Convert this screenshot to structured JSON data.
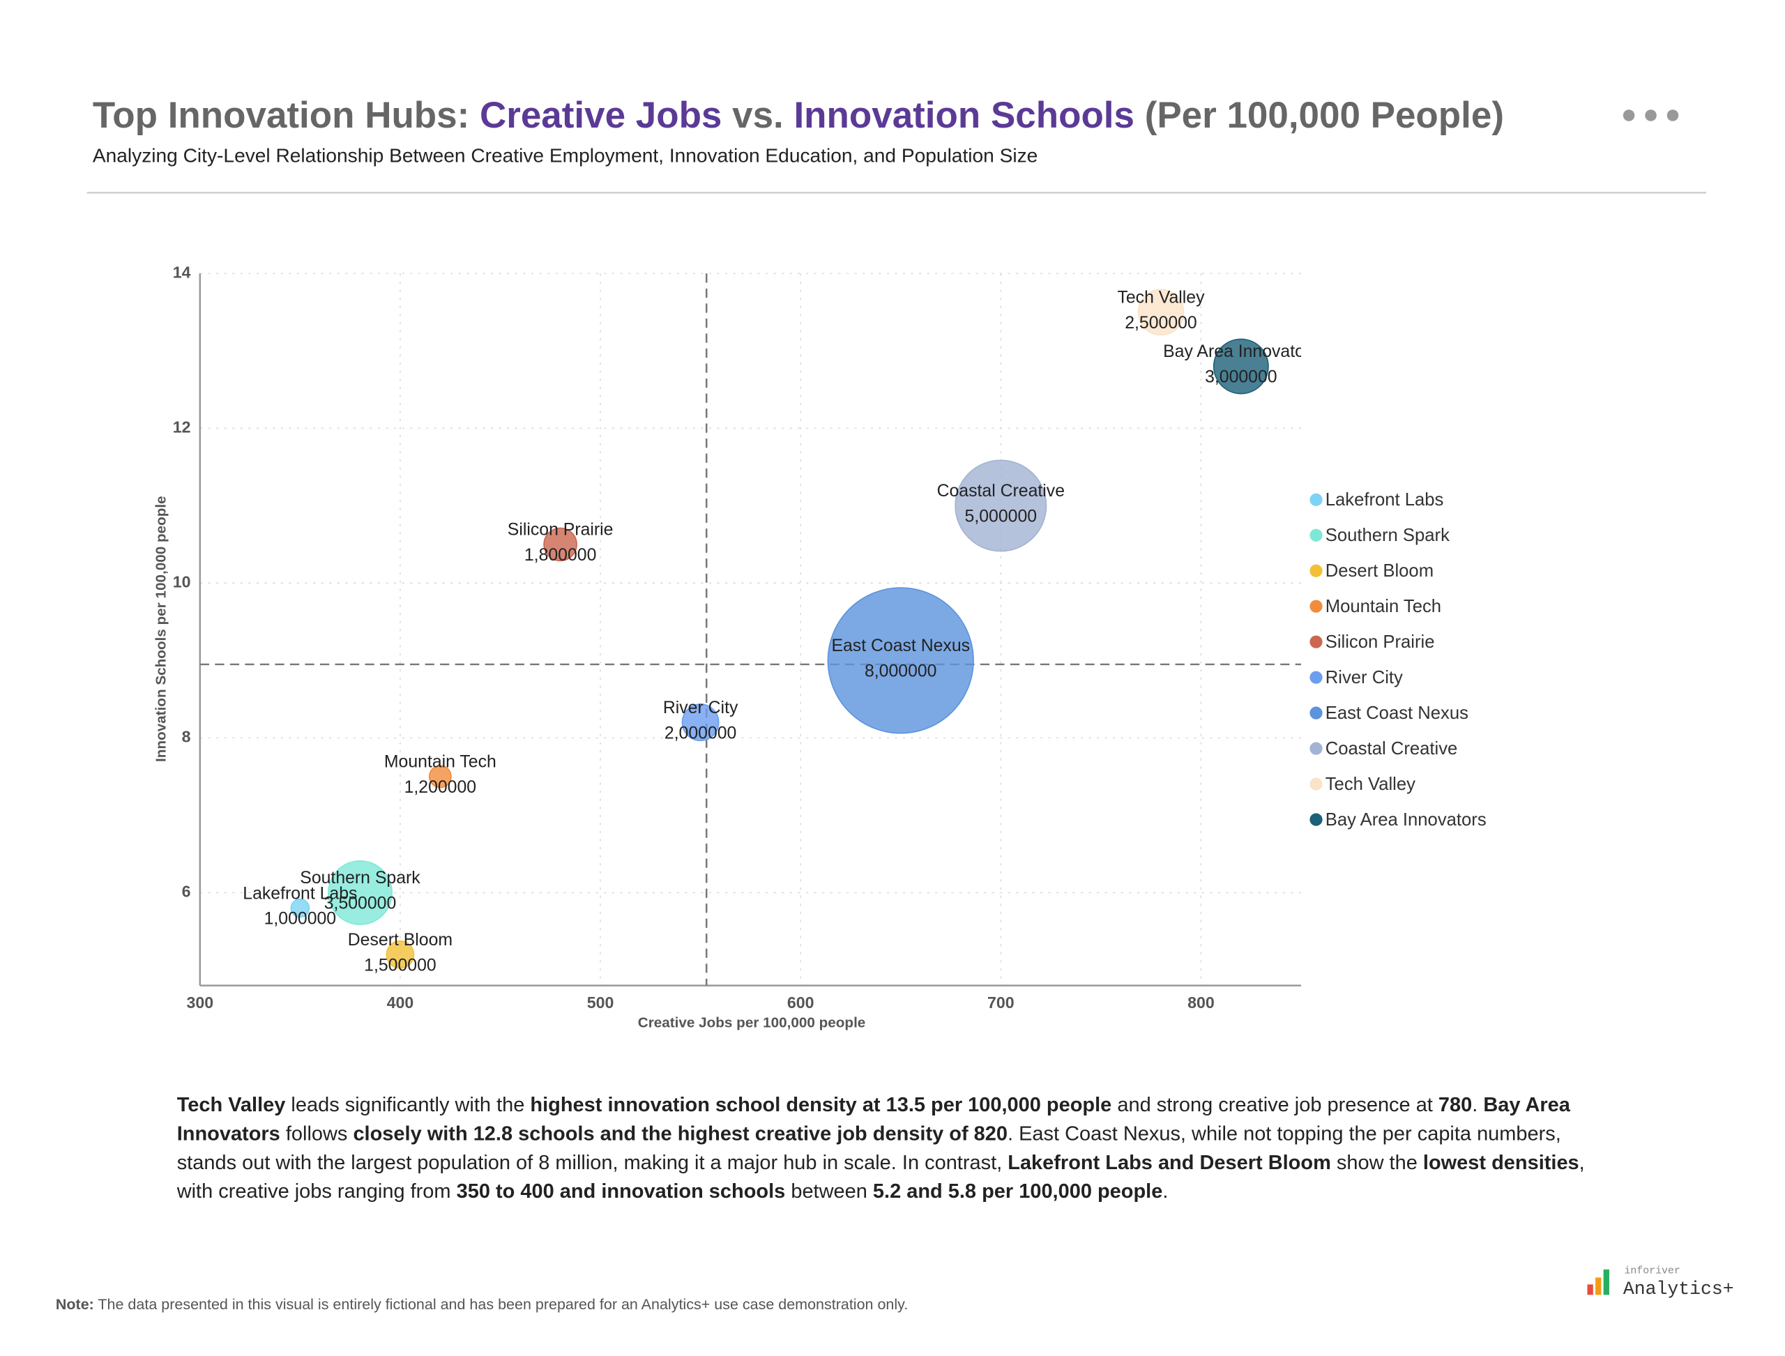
{
  "chart_data": {
    "type": "bubble",
    "title_parts": [
      {
        "text": "Top Innovation Hubs: ",
        "color": "#666666"
      },
      {
        "text": "Creative Jobs",
        "color": "#5b3a96"
      },
      {
        "text": " vs. ",
        "color": "#666666"
      },
      {
        "text": "Innovation Schools",
        "color": "#5b3a96"
      },
      {
        "text": " (Per 100,000 People)",
        "color": "#666666"
      }
    ],
    "subtitle": "Analyzing City-Level Relationship Between Creative Employment, Innovation Education, and Population Size",
    "x_label": "Creative Jobs per 100,000 people",
    "y_label": "Innovation Schools per 100,000 people",
    "xlim": [
      300,
      850
    ],
    "xticks": [
      300,
      400,
      500,
      600,
      700,
      800
    ],
    "ylim": [
      4.8,
      14
    ],
    "yticks": [
      6,
      8,
      10,
      12,
      14
    ],
    "grid": true,
    "mean_lines": {
      "x": 553,
      "y": 8.95
    },
    "legend": "right",
    "series": [
      {
        "name": "Lakefront Labs",
        "color": "#7dd3f5",
        "x": [
          350
        ],
        "values": [
          5.8
        ],
        "sizes": [
          1000000
        ],
        "value_labels": [
          "1,000000"
        ]
      },
      {
        "name": "Southern Spark",
        "color": "#7ee8d8",
        "x": [
          380
        ],
        "values": [
          6.0
        ],
        "sizes": [
          3500000
        ],
        "value_labels": [
          "3,500000"
        ]
      },
      {
        "name": "Desert Bloom",
        "color": "#f2c037",
        "x": [
          400
        ],
        "values": [
          5.2
        ],
        "sizes": [
          1500000
        ],
        "value_labels": [
          "1,500000"
        ]
      },
      {
        "name": "Mountain Tech",
        "color": "#f28c3c",
        "x": [
          420
        ],
        "values": [
          7.5
        ],
        "sizes": [
          1200000
        ],
        "value_labels": [
          "1,200000"
        ]
      },
      {
        "name": "Silicon Prairie",
        "color": "#cc6650",
        "x": [
          480
        ],
        "values": [
          10.5
        ],
        "sizes": [
          1800000
        ],
        "value_labels": [
          "1,800000"
        ]
      },
      {
        "name": "River City",
        "color": "#6b9ef0",
        "x": [
          550
        ],
        "values": [
          8.2
        ],
        "sizes": [
          2000000
        ],
        "value_labels": [
          "2,000000"
        ]
      },
      {
        "name": "East Coast Nexus",
        "color": "#5b94dd",
        "x": [
          650
        ],
        "values": [
          9.0
        ],
        "sizes": [
          8000000
        ],
        "value_labels": [
          "8,000000"
        ]
      },
      {
        "name": "Coastal Creative",
        "color": "#a3b3d3",
        "x": [
          700
        ],
        "values": [
          11.0
        ],
        "sizes": [
          5000000
        ],
        "value_labels": [
          "5,000000"
        ]
      },
      {
        "name": "Tech Valley",
        "color": "#fbe3c8",
        "x": [
          780
        ],
        "values": [
          13.5
        ],
        "sizes": [
          2500000
        ],
        "value_labels": [
          "2,500000"
        ]
      },
      {
        "name": "Bay Area Innovators",
        "color": "#1c6079",
        "x": [
          820
        ],
        "values": [
          12.8
        ],
        "sizes": [
          3000000
        ],
        "value_labels": [
          "3,000000"
        ]
      }
    ]
  },
  "summary": [
    {
      "text": "Tech Valley",
      "bold": true
    },
    {
      "text": " leads significantly with the ",
      "bold": false
    },
    {
      "text": "highest innovation school density at 13.5 per 100,000 people",
      "bold": true
    },
    {
      "text": " and strong creative job presence at ",
      "bold": false
    },
    {
      "text": "780",
      "bold": true
    },
    {
      "text": ". ",
      "bold": false
    },
    {
      "text": "Bay Area Innovators",
      "bold": true
    },
    {
      "text": " follows ",
      "bold": false
    },
    {
      "text": "closely with 12.8 schools and the highest creative job density of 820",
      "bold": true
    },
    {
      "text": ". East Coast Nexus, while not topping the per capita numbers, stands out with the largest population of 8 million, making it a major hub in scale. In contrast, ",
      "bold": false
    },
    {
      "text": "Lakefront Labs and Desert Bloom",
      "bold": true
    },
    {
      "text": " show the ",
      "bold": false
    },
    {
      "text": "lowest densities",
      "bold": true
    },
    {
      "text": ", with creative jobs ranging from ",
      "bold": false
    },
    {
      "text": "350 to 400 and innovation schools",
      "bold": true
    },
    {
      "text": " between ",
      "bold": false
    },
    {
      "text": "5.2 and 5.8 per 100,000 people",
      "bold": true
    },
    {
      "text": ".",
      "bold": false
    }
  ],
  "note": {
    "label": "Note:",
    "text": " The data presented in this visual is entirely fictional and has been prepared for an Analytics+ use case demonstration only."
  },
  "logo": {
    "sub": "inforiver",
    "name": "Analytics+"
  }
}
